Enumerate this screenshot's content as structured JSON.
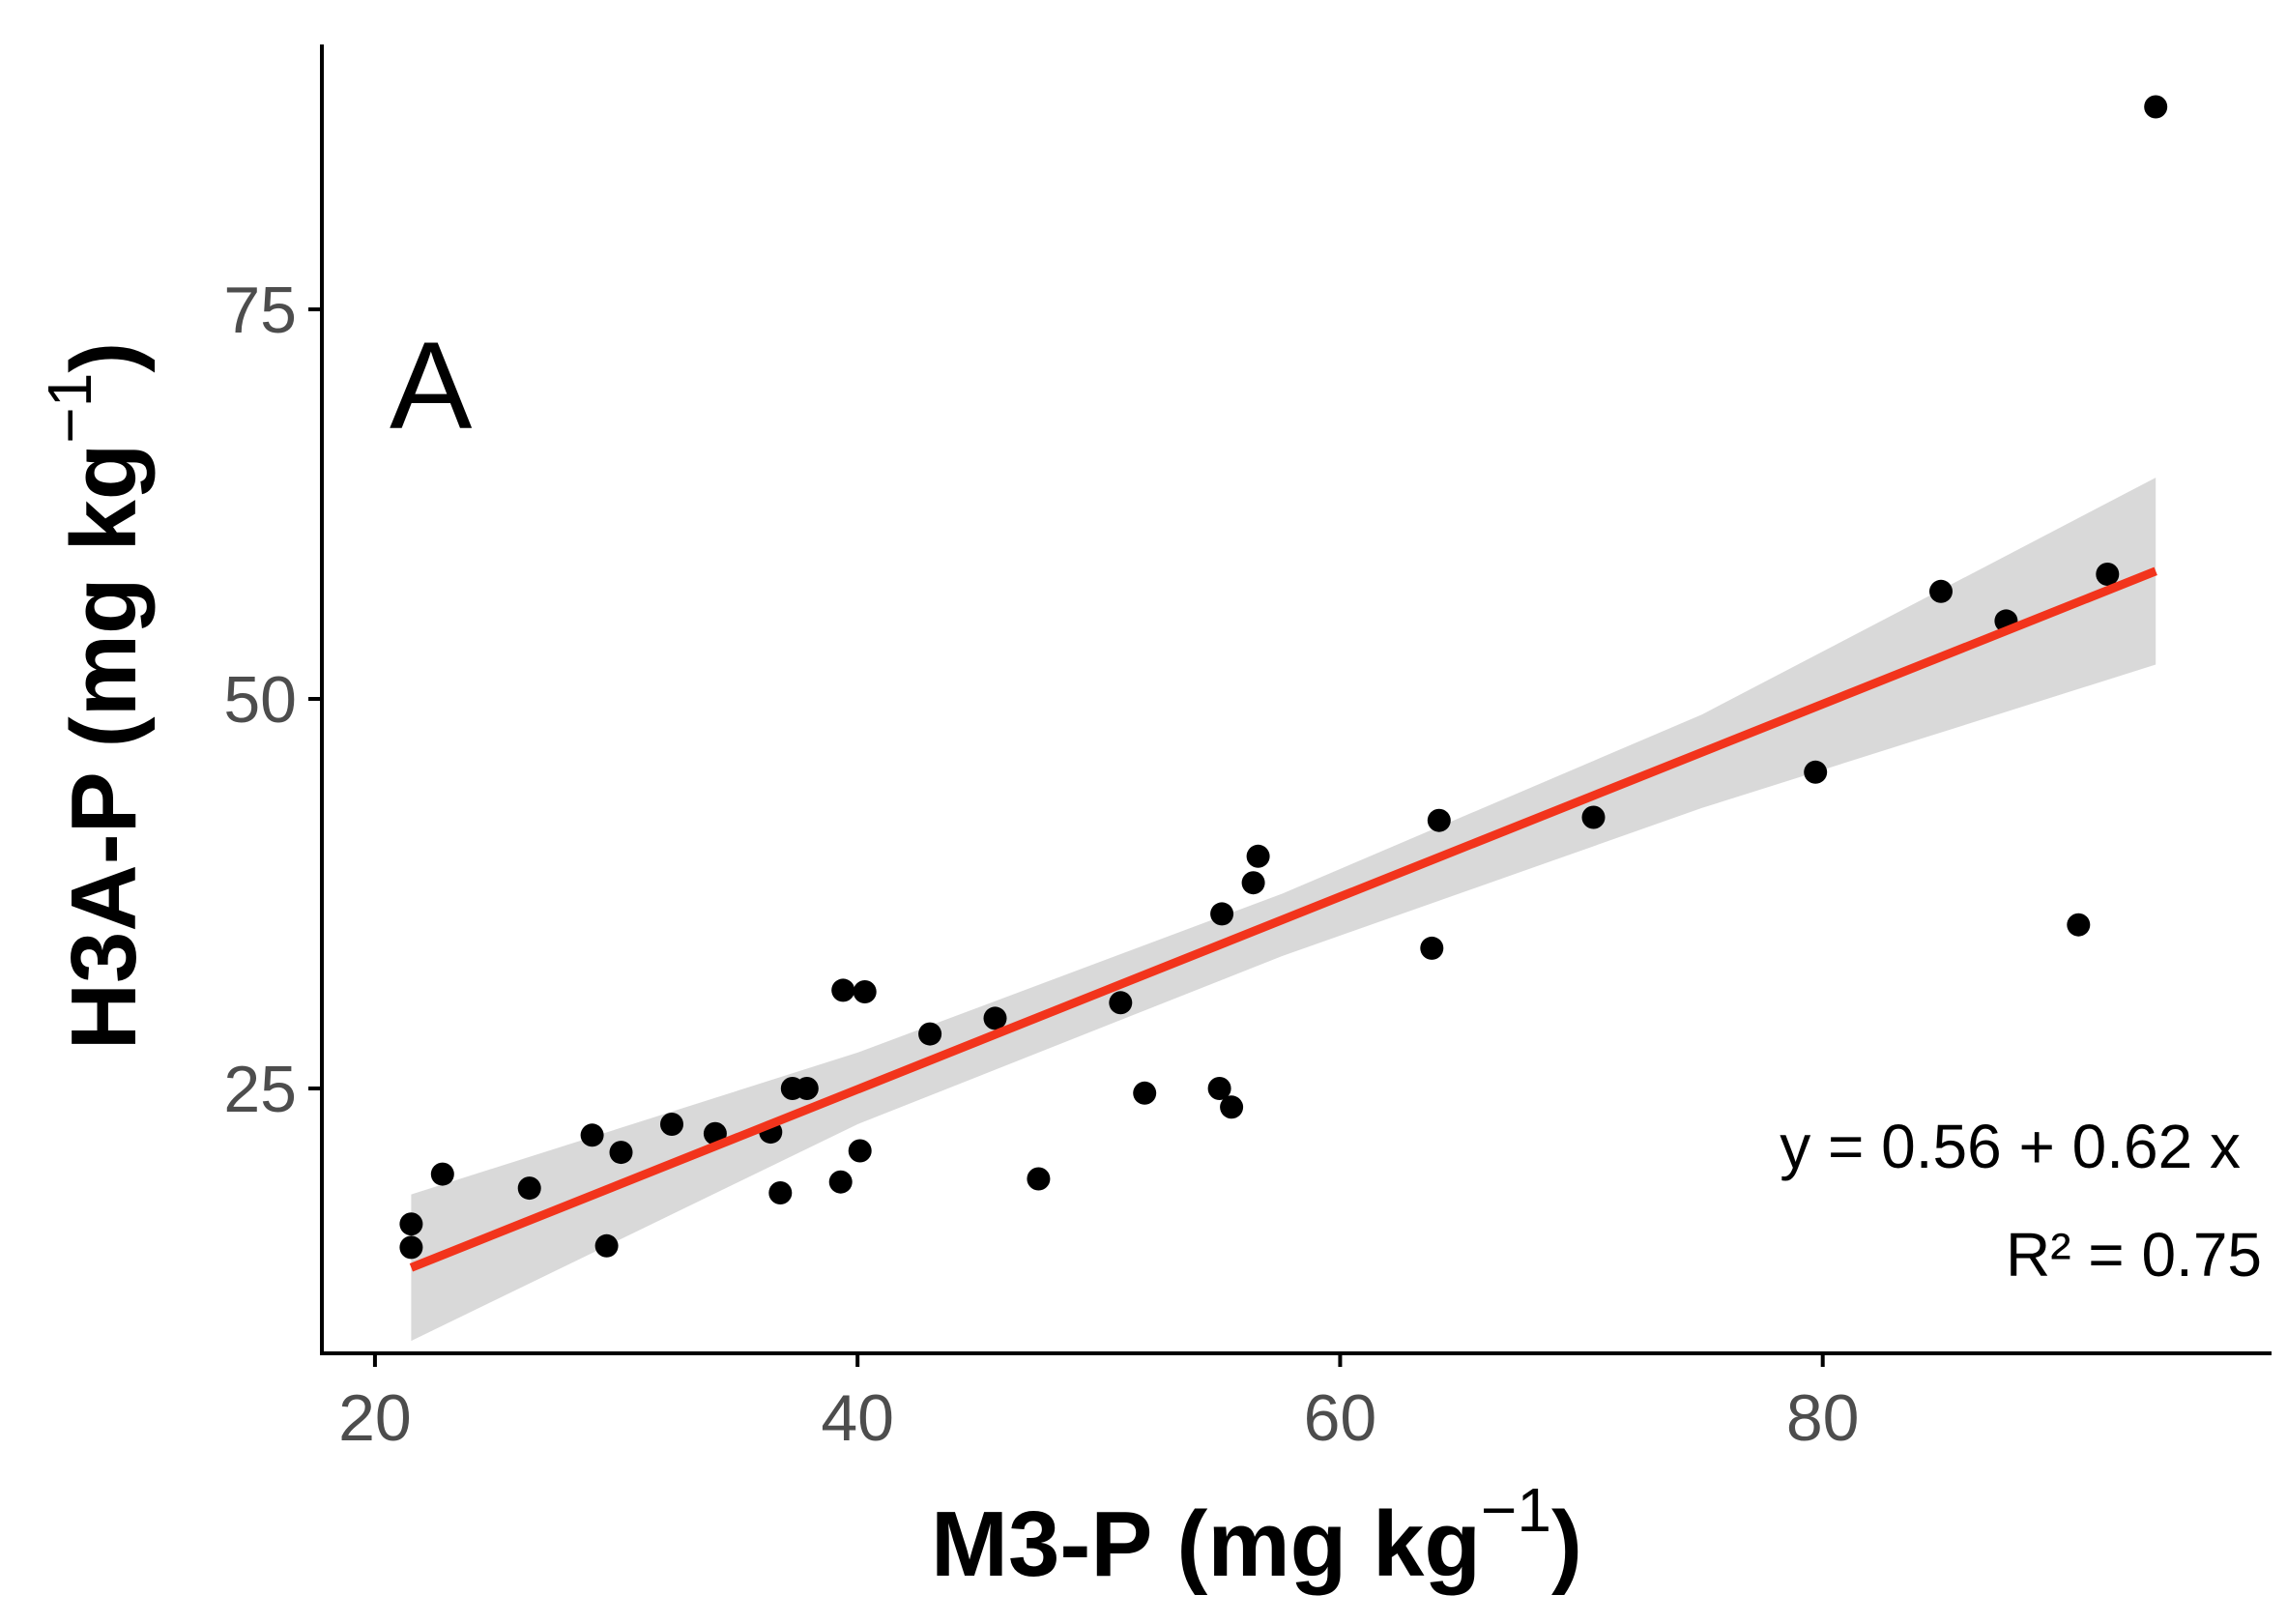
{
  "chart_data": {
    "type": "scatter",
    "panel_label": "A",
    "xlabel": {
      "main": "M3-P (mg kg",
      "sup": "−1",
      "close": ")"
    },
    "ylabel": {
      "main": "H3A-P (mg kg",
      "sup": "−1",
      "close": ")"
    },
    "xlim": [
      17.8,
      98.6
    ],
    "ylim": [
      8.0,
      92.0
    ],
    "x_ticks": [
      20,
      40,
      60,
      80
    ],
    "y_ticks": [
      25,
      50,
      75
    ],
    "x_tick_labels": [
      "20",
      "40",
      "60",
      "80"
    ],
    "y_tick_labels": [
      "25",
      "50",
      "75"
    ],
    "grid": false,
    "points": [
      {
        "x": 21.5,
        "y": 16.3
      },
      {
        "x": 21.5,
        "y": 14.8
      },
      {
        "x": 22.8,
        "y": 19.5
      },
      {
        "x": 26.4,
        "y": 18.6
      },
      {
        "x": 29.0,
        "y": 22.0
      },
      {
        "x": 29.6,
        "y": 14.9
      },
      {
        "x": 30.2,
        "y": 20.9
      },
      {
        "x": 32.3,
        "y": 22.7
      },
      {
        "x": 34.1,
        "y": 22.1
      },
      {
        "x": 36.4,
        "y": 22.2
      },
      {
        "x": 36.8,
        "y": 18.3
      },
      {
        "x": 37.3,
        "y": 25.0
      },
      {
        "x": 37.9,
        "y": 25.0
      },
      {
        "x": 39.3,
        "y": 19.0
      },
      {
        "x": 39.4,
        "y": 31.3
      },
      {
        "x": 40.1,
        "y": 21.0
      },
      {
        "x": 40.3,
        "y": 31.2
      },
      {
        "x": 43.0,
        "y": 28.5
      },
      {
        "x": 45.7,
        "y": 29.5
      },
      {
        "x": 47.5,
        "y": 19.2
      },
      {
        "x": 50.9,
        "y": 30.5
      },
      {
        "x": 51.9,
        "y": 24.7
      },
      {
        "x": 55.0,
        "y": 25.0
      },
      {
        "x": 55.1,
        "y": 36.2
      },
      {
        "x": 55.5,
        "y": 23.8
      },
      {
        "x": 56.4,
        "y": 38.2
      },
      {
        "x": 56.6,
        "y": 39.9
      },
      {
        "x": 63.8,
        "y": 34.0
      },
      {
        "x": 64.1,
        "y": 42.2
      },
      {
        "x": 70.5,
        "y": 42.4
      },
      {
        "x": 79.7,
        "y": 45.3
      },
      {
        "x": 84.9,
        "y": 56.9
      },
      {
        "x": 87.6,
        "y": 55.0
      },
      {
        "x": 90.6,
        "y": 35.5
      },
      {
        "x": 91.8,
        "y": 58.0
      },
      {
        "x": 93.8,
        "y": 88.0
      }
    ],
    "fit": {
      "x_start": 21.5,
      "x_end": 93.8,
      "y_start": 13.5,
      "y_end": 58.2
    },
    "ci_band": [
      {
        "x": 21.5,
        "lower": 8.8,
        "upper": 18.2
      },
      {
        "x": 40.0,
        "lower": 22.7,
        "upper": 27.3
      },
      {
        "x": 57.6,
        "lower": 33.5,
        "upper": 37.5
      },
      {
        "x": 75.0,
        "lower": 43.0,
        "upper": 49.0
      },
      {
        "x": 93.8,
        "lower": 52.2,
        "upper": 64.2
      }
    ],
    "annotations": {
      "equation": "y =  0.56  +  0.62 x",
      "r2": "R² =  0.75"
    },
    "colors": {
      "points": "#000000",
      "fit_line": "#f2341c",
      "ci_band": "#d9d9d9",
      "axis": "#000000",
      "tick_label": "#4d4d4d"
    }
  }
}
